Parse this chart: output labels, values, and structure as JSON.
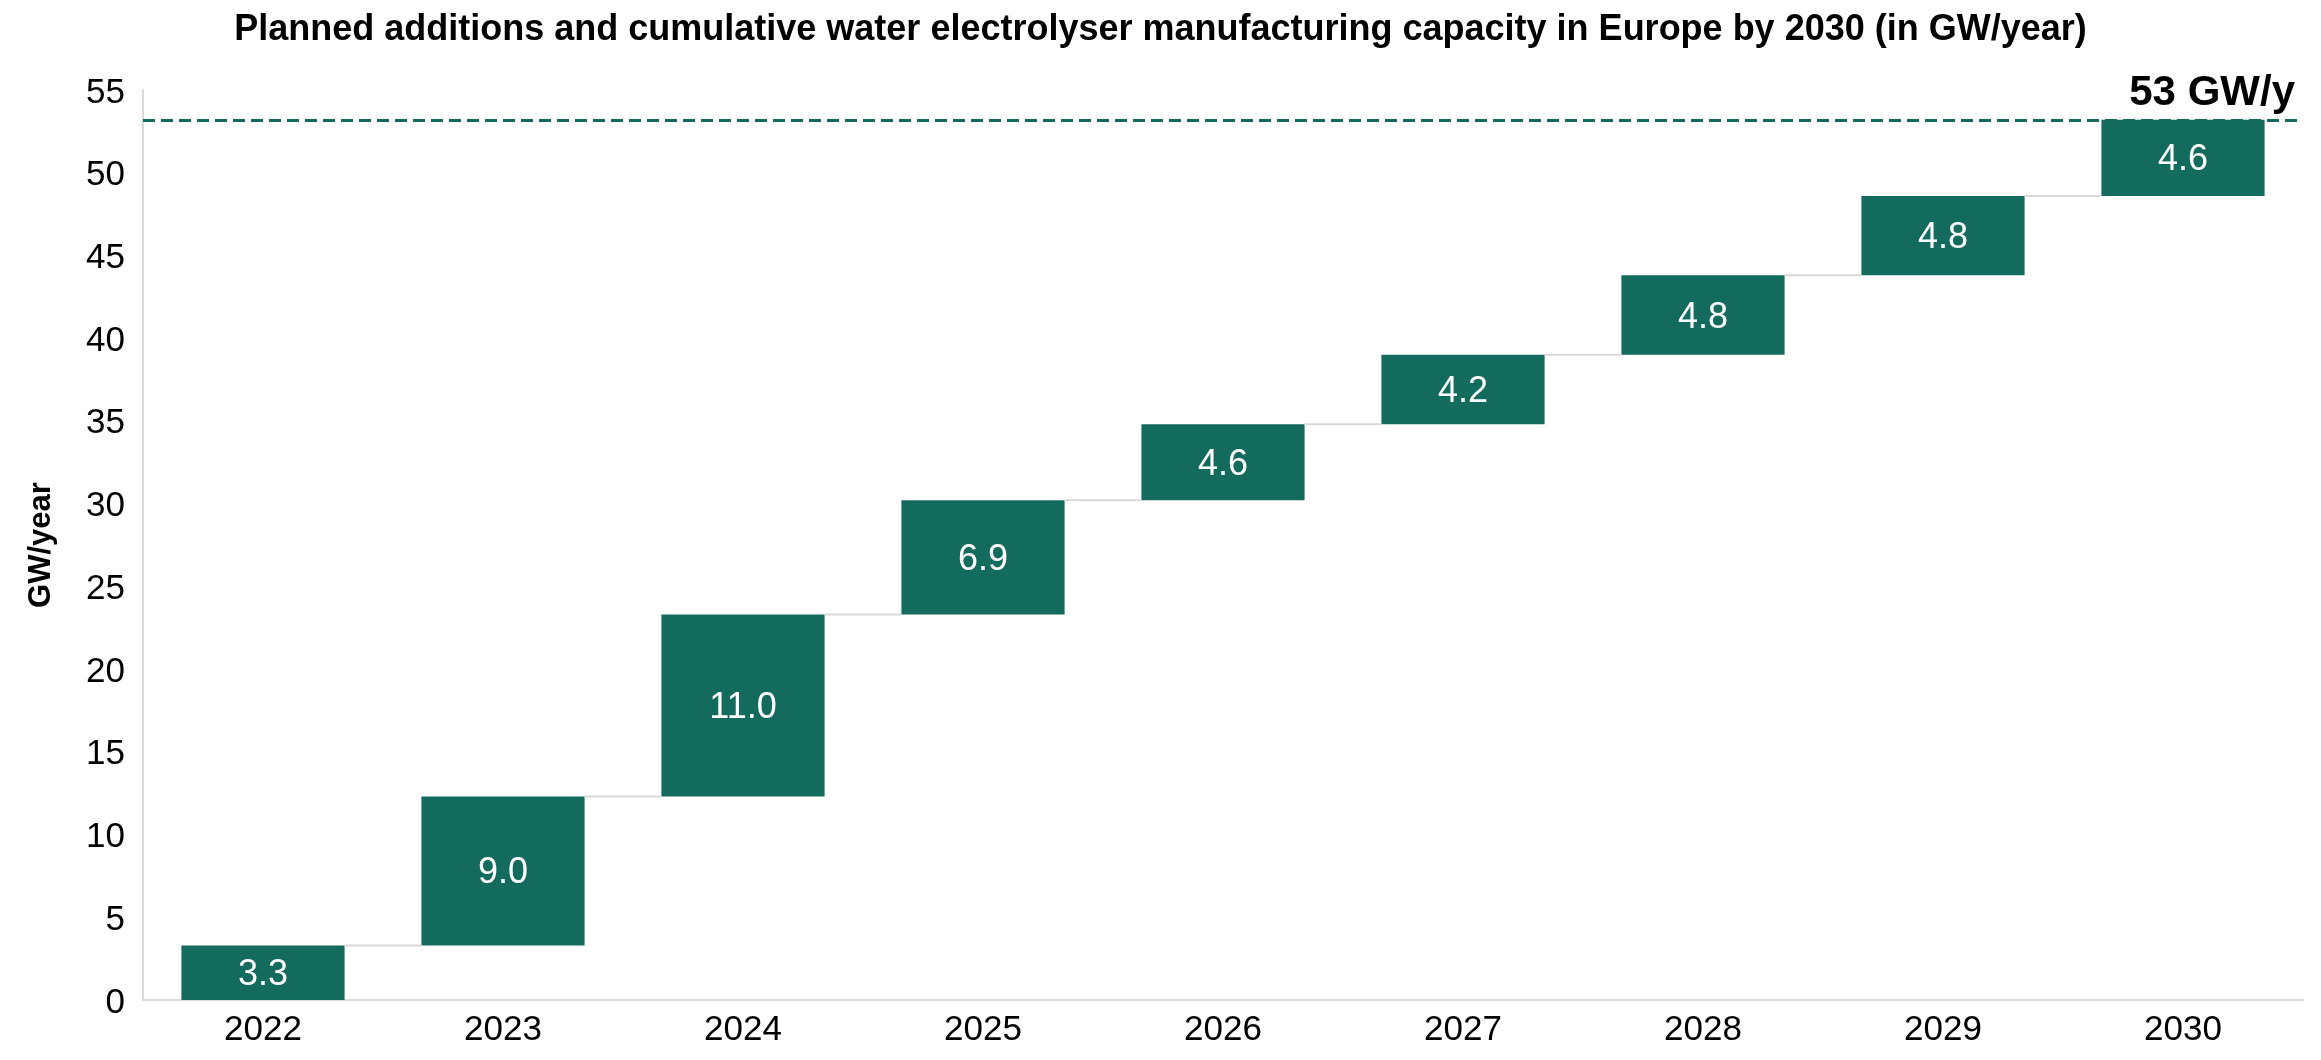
{
  "chart_data": {
    "type": "bar",
    "title": "Planned additions and cumulative water electrolyser manufacturing capacity in Europe by 2030 (in GW/year)",
    "ylabel": "GW/year",
    "categories": [
      "2022",
      "2023",
      "2024",
      "2025",
      "2026",
      "2027",
      "2028",
      "2029",
      "2030"
    ],
    "values": [
      3.3,
      9.0,
      11.0,
      6.9,
      4.6,
      4.2,
      4.8,
      4.8,
      4.6
    ],
    "base": [
      0,
      3.3,
      12.3,
      23.3,
      30.2,
      34.8,
      39.0,
      43.8,
      48.6
    ],
    "value_labels": [
      "3.3",
      "9.0",
      "11.0",
      "6.9",
      "4.6",
      "4.2",
      "4.8",
      "4.8",
      "4.6"
    ],
    "color": "#136b5e",
    "ylim": [
      0,
      55
    ],
    "yticks": [
      0,
      5,
      10,
      15,
      20,
      25,
      30,
      35,
      40,
      45,
      50,
      55
    ],
    "ref_lines": [
      {
        "axis": "y",
        "value": 53.2,
        "label": "53 GW/y",
        "color": "#136b5e",
        "line_style": "dashed"
      }
    ]
  }
}
